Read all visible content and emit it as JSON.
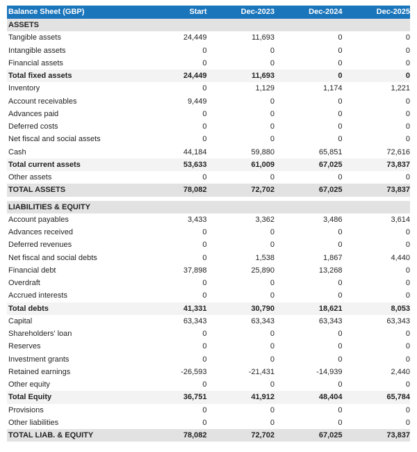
{
  "header": {
    "title": "Balance Sheet (GBP)",
    "columns": [
      "Start",
      "Dec-2023",
      "Dec-2024",
      "Dec-2025"
    ]
  },
  "colors": {
    "header_bg": "#1b75bb",
    "section_bg": "#e2e2e2",
    "total_bg": "#f3f3f3"
  },
  "sections": [
    {
      "title": "ASSETS",
      "rows": [
        {
          "label": "Tangible assets",
          "type": "n",
          "values": [
            "24,449",
            "11,693",
            "0",
            "0"
          ]
        },
        {
          "label": "Intangible assets",
          "type": "n",
          "values": [
            "0",
            "0",
            "0",
            "0"
          ]
        },
        {
          "label": "Financial assets",
          "type": "n",
          "values": [
            "0",
            "0",
            "0",
            "0"
          ]
        },
        {
          "label": "Total fixed assets",
          "type": "t",
          "values": [
            "24,449",
            "11,693",
            "0",
            "0"
          ]
        },
        {
          "label": "Inventory",
          "type": "n",
          "values": [
            "0",
            "1,129",
            "1,174",
            "1,221"
          ]
        },
        {
          "label": "Account receivables",
          "type": "n",
          "values": [
            "9,449",
            "0",
            "0",
            "0"
          ]
        },
        {
          "label": "Advances paid",
          "type": "n",
          "values": [
            "0",
            "0",
            "0",
            "0"
          ]
        },
        {
          "label": "Deferred costs",
          "type": "n",
          "values": [
            "0",
            "0",
            "0",
            "0"
          ]
        },
        {
          "label": "Net fiscal and social assets",
          "type": "n",
          "values": [
            "0",
            "0",
            "0",
            "0"
          ]
        },
        {
          "label": "Cash",
          "type": "n",
          "values": [
            "44,184",
            "59,880",
            "65,851",
            "72,616"
          ]
        },
        {
          "label": "Total current assets",
          "type": "t",
          "values": [
            "53,633",
            "61,009",
            "67,025",
            "73,837"
          ]
        },
        {
          "label": "Other assets",
          "type": "n",
          "values": [
            "0",
            "0",
            "0",
            "0"
          ]
        },
        {
          "label": "TOTAL ASSETS",
          "type": "g",
          "values": [
            "78,082",
            "72,702",
            "67,025",
            "73,837"
          ]
        }
      ]
    },
    {
      "title": "LIABILITIES & EQUITY",
      "rows": [
        {
          "label": "Account payables",
          "type": "n",
          "values": [
            "3,433",
            "3,362",
            "3,486",
            "3,614"
          ]
        },
        {
          "label": "Advances received",
          "type": "n",
          "values": [
            "0",
            "0",
            "0",
            "0"
          ]
        },
        {
          "label": "Deferred revenues",
          "type": "n",
          "values": [
            "0",
            "0",
            "0",
            "0"
          ]
        },
        {
          "label": "Net fiscal and social debts",
          "type": "n",
          "values": [
            "0",
            "1,538",
            "1,867",
            "4,440"
          ]
        },
        {
          "label": "Financial debt",
          "type": "n",
          "values": [
            "37,898",
            "25,890",
            "13,268",
            "0"
          ]
        },
        {
          "label": "Overdraft",
          "type": "n",
          "values": [
            "0",
            "0",
            "0",
            "0"
          ]
        },
        {
          "label": "Accrued interests",
          "type": "n",
          "values": [
            "0",
            "0",
            "0",
            "0"
          ]
        },
        {
          "label": "Total debts",
          "type": "t",
          "values": [
            "41,331",
            "30,790",
            "18,621",
            "8,053"
          ]
        },
        {
          "label": "Capital",
          "type": "n",
          "values": [
            "63,343",
            "63,343",
            "63,343",
            "63,343"
          ]
        },
        {
          "label": "Shareholders' loan",
          "type": "n",
          "values": [
            "0",
            "0",
            "0",
            "0"
          ]
        },
        {
          "label": "Reserves",
          "type": "n",
          "values": [
            "0",
            "0",
            "0",
            "0"
          ]
        },
        {
          "label": "Investment grants",
          "type": "n",
          "values": [
            "0",
            "0",
            "0",
            "0"
          ]
        },
        {
          "label": "Retained earnings",
          "type": "n",
          "values": [
            "-26,593",
            "-21,431",
            "-14,939",
            "2,440"
          ]
        },
        {
          "label": "Other equity",
          "type": "n",
          "values": [
            "0",
            "0",
            "0",
            "0"
          ]
        },
        {
          "label": "Total Equity",
          "type": "t",
          "values": [
            "36,751",
            "41,912",
            "48,404",
            "65,784"
          ]
        },
        {
          "label": "Provisions",
          "type": "n",
          "values": [
            "0",
            "0",
            "0",
            "0"
          ]
        },
        {
          "label": "Other liabilities",
          "type": "n",
          "values": [
            "0",
            "0",
            "0",
            "0"
          ]
        },
        {
          "label": "TOTAL LIAB. & EQUITY",
          "type": "g",
          "values": [
            "78,082",
            "72,702",
            "67,025",
            "73,837"
          ]
        }
      ]
    }
  ]
}
